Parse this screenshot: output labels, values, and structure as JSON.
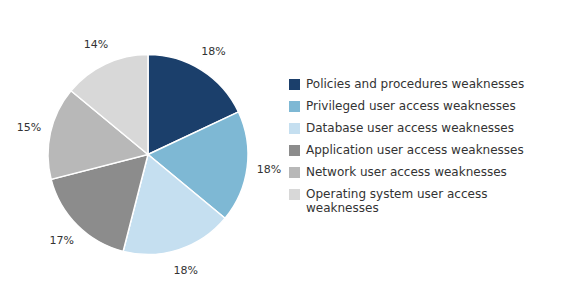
{
  "chart_data": {
    "type": "pie",
    "categories": [
      "Policies and procedures weaknesses",
      "Privileged user access weaknesses",
      "Database user access weaknesses",
      "Application user access weaknesses",
      "Network user access weaknesses",
      "Operating system user access\nweaknesses"
    ],
    "values": [
      18,
      18,
      18,
      17,
      15,
      14
    ],
    "value_labels": [
      "18%",
      "18%",
      "18%",
      "17%",
      "15%",
      "14%"
    ],
    "colors": [
      "#1b3f6b",
      "#7eb8d4",
      "#c5dff0",
      "#8c8c8c",
      "#b8b8b8",
      "#d8d8d8"
    ],
    "data_labels": true,
    "legend": "right"
  }
}
